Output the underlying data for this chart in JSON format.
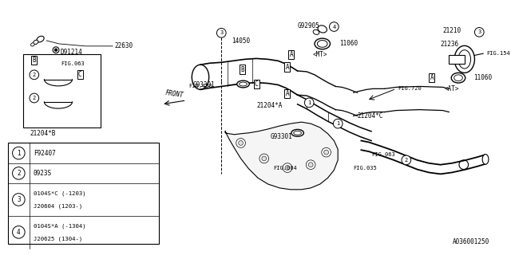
{
  "bg_color": "#ffffff",
  "line_color": "#000000",
  "part_number": "A036001250",
  "legend_rows": [
    {
      "num": "1",
      "lines": [
        "F92407"
      ]
    },
    {
      "num": "2",
      "lines": [
        "0923S"
      ]
    },
    {
      "num": "3",
      "lines": [
        "0104S*C (-1203)",
        "J20604 (1203-)"
      ]
    },
    {
      "num": "4",
      "lines": [
        "0104S*A (-1304)",
        "J20625 (1304-)"
      ]
    }
  ],
  "figsize": [
    6.4,
    3.2
  ],
  "dpi": 100
}
